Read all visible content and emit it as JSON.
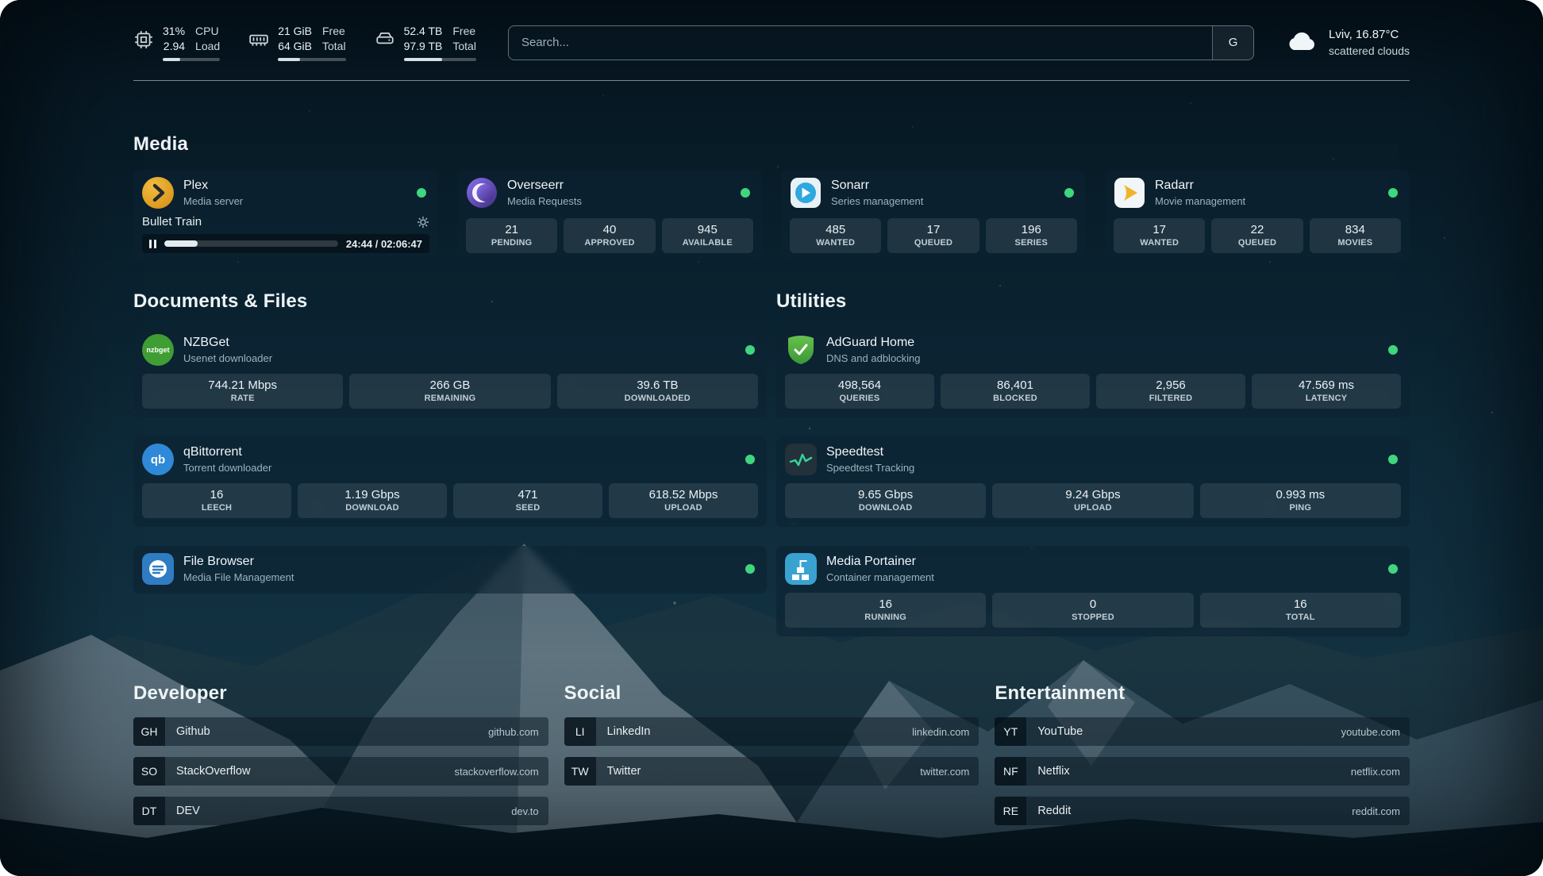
{
  "topbar": {
    "cpu": {
      "value_top": "31%",
      "value_bottom": "2.94",
      "label_top": "CPU",
      "label_bottom": "Load",
      "bar_percent": 31
    },
    "memory": {
      "value_top": "21 GiB",
      "value_bottom": "64 GiB",
      "label_top": "Free",
      "label_bottom": "Total",
      "bar_percent": 33
    },
    "disk": {
      "value_top": "52.4 TB",
      "value_bottom": "97.9 TB",
      "label_top": "Free",
      "label_bottom": "Total",
      "bar_percent": 53
    },
    "search": {
      "placeholder": "Search...",
      "provider": "G"
    },
    "weather": {
      "location": "Lviv, 16.87°C",
      "condition": "scattered clouds"
    }
  },
  "sections": {
    "media": {
      "title": "Media",
      "cards": [
        {
          "name": "Plex",
          "subtitle": "Media server",
          "player": {
            "title": "Bullet Train",
            "time": "24:44 / 02:06:47",
            "progress": 19
          }
        },
        {
          "name": "Overseerr",
          "subtitle": "Media Requests",
          "stats": [
            {
              "value": "21",
              "label": "PENDING"
            },
            {
              "value": "40",
              "label": "APPROVED"
            },
            {
              "value": "945",
              "label": "AVAILABLE"
            }
          ]
        },
        {
          "name": "Sonarr",
          "subtitle": "Series management",
          "stats": [
            {
              "value": "485",
              "label": "WANTED"
            },
            {
              "value": "17",
              "label": "QUEUED"
            },
            {
              "value": "196",
              "label": "SERIES"
            }
          ]
        },
        {
          "name": "Radarr",
          "subtitle": "Movie management",
          "stats": [
            {
              "value": "17",
              "label": "WANTED"
            },
            {
              "value": "22",
              "label": "QUEUED"
            },
            {
              "value": "834",
              "label": "MOVIES"
            }
          ]
        }
      ]
    },
    "documents": {
      "title": "Documents & Files",
      "cards": [
        {
          "name": "NZBGet",
          "subtitle": "Usenet downloader",
          "icon_text": "nzbget",
          "stats": [
            {
              "value": "744.21 Mbps",
              "label": "RATE"
            },
            {
              "value": "266 GB",
              "label": "REMAINING"
            },
            {
              "value": "39.6 TB",
              "label": "DOWNLOADED"
            }
          ]
        },
        {
          "name": "qBittorrent",
          "subtitle": "Torrent downloader",
          "icon_text": "qb",
          "stats": [
            {
              "value": "16",
              "label": "LEECH"
            },
            {
              "value": "1.19 Gbps",
              "label": "DOWNLOAD"
            },
            {
              "value": "471",
              "label": "SEED"
            },
            {
              "value": "618.52 Mbps",
              "label": "UPLOAD"
            }
          ]
        },
        {
          "name": "File Browser",
          "subtitle": "Media File Management"
        }
      ]
    },
    "utilities": {
      "title": "Utilities",
      "cards": [
        {
          "name": "AdGuard Home",
          "subtitle": "DNS and adblocking",
          "stats": [
            {
              "value": "498,564",
              "label": "QUERIES"
            },
            {
              "value": "86,401",
              "label": "BLOCKED"
            },
            {
              "value": "2,956",
              "label": "FILTERED"
            },
            {
              "value": "47.569 ms",
              "label": "LATENCY"
            }
          ]
        },
        {
          "name": "Speedtest",
          "subtitle": "Speedtest Tracking",
          "stats": [
            {
              "value": "9.65 Gbps",
              "label": "DOWNLOAD"
            },
            {
              "value": "9.24 Gbps",
              "label": "UPLOAD"
            },
            {
              "value": "0.993 ms",
              "label": "PING"
            }
          ]
        },
        {
          "name": "Media Portainer",
          "subtitle": "Container management",
          "stats": [
            {
              "value": "16",
              "label": "RUNNING"
            },
            {
              "value": "0",
              "label": "STOPPED"
            },
            {
              "value": "16",
              "label": "TOTAL"
            }
          ]
        }
      ]
    },
    "bookmarks": [
      {
        "title": "Developer",
        "items": [
          {
            "abbr": "GH",
            "name": "Github",
            "url": "github.com"
          },
          {
            "abbr": "SO",
            "name": "StackOverflow",
            "url": "stackoverflow.com"
          },
          {
            "abbr": "DT",
            "name": "DEV",
            "url": "dev.to"
          }
        ]
      },
      {
        "title": "Social",
        "items": [
          {
            "abbr": "LI",
            "name": "LinkedIn",
            "url": "linkedin.com"
          },
          {
            "abbr": "TW",
            "name": "Twitter",
            "url": "twitter.com"
          }
        ]
      },
      {
        "title": "Entertainment",
        "items": [
          {
            "abbr": "YT",
            "name": "YouTube",
            "url": "youtube.com"
          },
          {
            "abbr": "NF",
            "name": "Netflix",
            "url": "netflix.com"
          },
          {
            "abbr": "RE",
            "name": "Reddit",
            "url": "reddit.com"
          }
        ]
      }
    ]
  },
  "icons": {
    "cpu": "chip",
    "memory": "ram-module",
    "disk": "hard-drive",
    "weather": "cloud",
    "settings": "gear",
    "player": "pause",
    "status": "green-dot"
  },
  "colors": {
    "status_online": "#3fd67d",
    "card_background": "rgba(12,35,50,0.58)",
    "accent_text": "#eef4f6"
  }
}
